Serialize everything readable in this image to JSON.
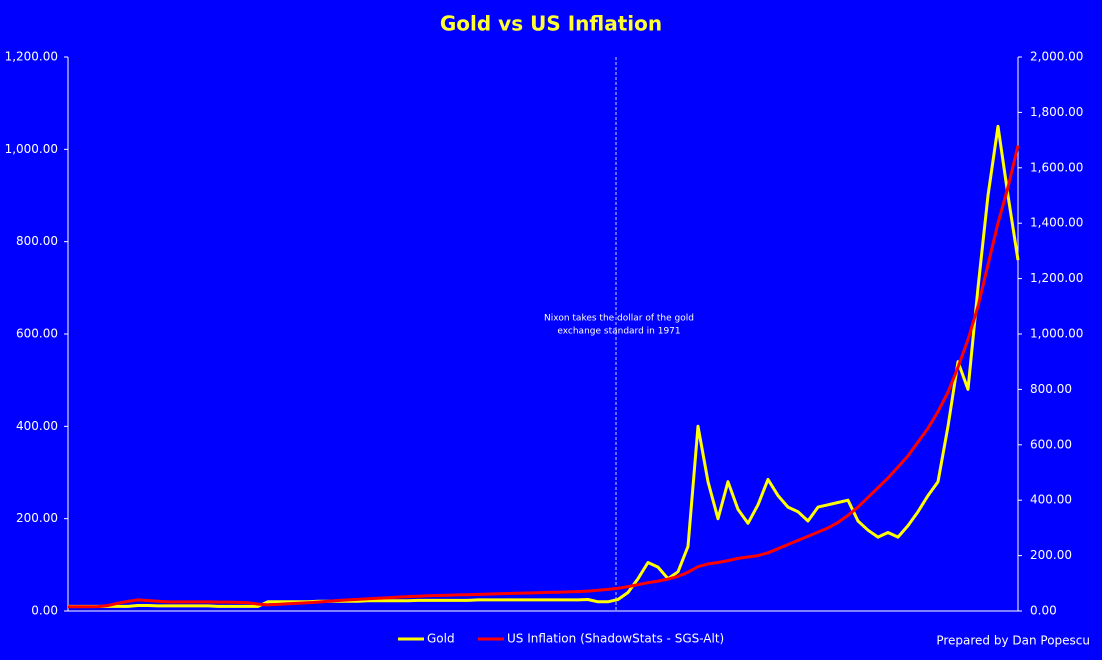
{
  "chart_data": {
    "type": "line",
    "title": "Gold vs US Inflation",
    "annotation": [
      "Nixon takes the dollar of  the gold",
      "exchange standard in 1971"
    ],
    "footer": "Prepared by Dan Popescu",
    "ylim": [
      0,
      1200
    ],
    "yticks": [
      {
        "value": 0,
        "label": "0.00"
      },
      {
        "value": 200,
        "label": "200.00"
      },
      {
        "value": 400,
        "label": "400.00"
      },
      {
        "value": 600,
        "label": "600.00"
      },
      {
        "value": 800,
        "label": "800.00"
      },
      {
        "value": 1000,
        "label": "1,000.00"
      },
      {
        "value": 1200,
        "label": "1,200.00"
      }
    ],
    "y2lim": [
      0,
      2000
    ],
    "y2ticks": [
      {
        "value": 0,
        "label": "0.00"
      },
      {
        "value": 200,
        "label": "200.00"
      },
      {
        "value": 400,
        "label": "400.00"
      },
      {
        "value": 600,
        "label": "600.00"
      },
      {
        "value": 800,
        "label": "800.00"
      },
      {
        "value": 1000,
        "label": "1,000.00"
      },
      {
        "value": 1200,
        "label": "1,200.00"
      },
      {
        "value": 1400,
        "label": "1,400.00"
      },
      {
        "value": 1600,
        "label": "1,600.00"
      },
      {
        "value": 1800,
        "label": "1,800.00"
      },
      {
        "value": 2000,
        "label": "2,000.00"
      }
    ],
    "legend": "bottom",
    "series": [
      {
        "name": "Gold",
        "color": "#ffff00",
        "axis": "y",
        "values": [
          10,
          10,
          10,
          10,
          10,
          10,
          10,
          12,
          12,
          11,
          11,
          11,
          11,
          11,
          11,
          10,
          10,
          10,
          10,
          10,
          20,
          20,
          20,
          20,
          20,
          21,
          21,
          21,
          21,
          21,
          22,
          22,
          22,
          22,
          22,
          23,
          23,
          23,
          23,
          23,
          23,
          24,
          24,
          24,
          24,
          24,
          24,
          24,
          24,
          24,
          24,
          24,
          25,
          20,
          20,
          25,
          40,
          70,
          105,
          95,
          70,
          85,
          140,
          400,
          280,
          200,
          280,
          220,
          190,
          230,
          285,
          250,
          225,
          215,
          195,
          225,
          230,
          235,
          240,
          195,
          175,
          160,
          170,
          160,
          185,
          215,
          250,
          280,
          400,
          540,
          480,
          700,
          900,
          1050,
          900,
          760
        ]
      },
      {
        "name": "US Inflation (ShadowStats - SGS-Alt)",
        "color": "#ff0000",
        "axis": "y2",
        "values": [
          15,
          15,
          15,
          16,
          20,
          28,
          35,
          40,
          38,
          35,
          33,
          33,
          33,
          33,
          33,
          32,
          32,
          31,
          30,
          25,
          22,
          24,
          26,
          28,
          30,
          32,
          35,
          38,
          40,
          42,
          44,
          46,
          48,
          50,
          52,
          53,
          55,
          56,
          57,
          58,
          59,
          60,
          61,
          62,
          63,
          64,
          65,
          66,
          67,
          68,
          69,
          70,
          72,
          75,
          78,
          82,
          88,
          95,
          102,
          108,
          115,
          125,
          140,
          160,
          170,
          175,
          182,
          190,
          195,
          200,
          210,
          225,
          240,
          255,
          270,
          285,
          300,
          320,
          345,
          375,
          410,
          445,
          480,
          520,
          560,
          610,
          660,
          720,
          790,
          880,
          980,
          1100,
          1250,
          1400,
          1530,
          1680
        ]
      }
    ]
  }
}
